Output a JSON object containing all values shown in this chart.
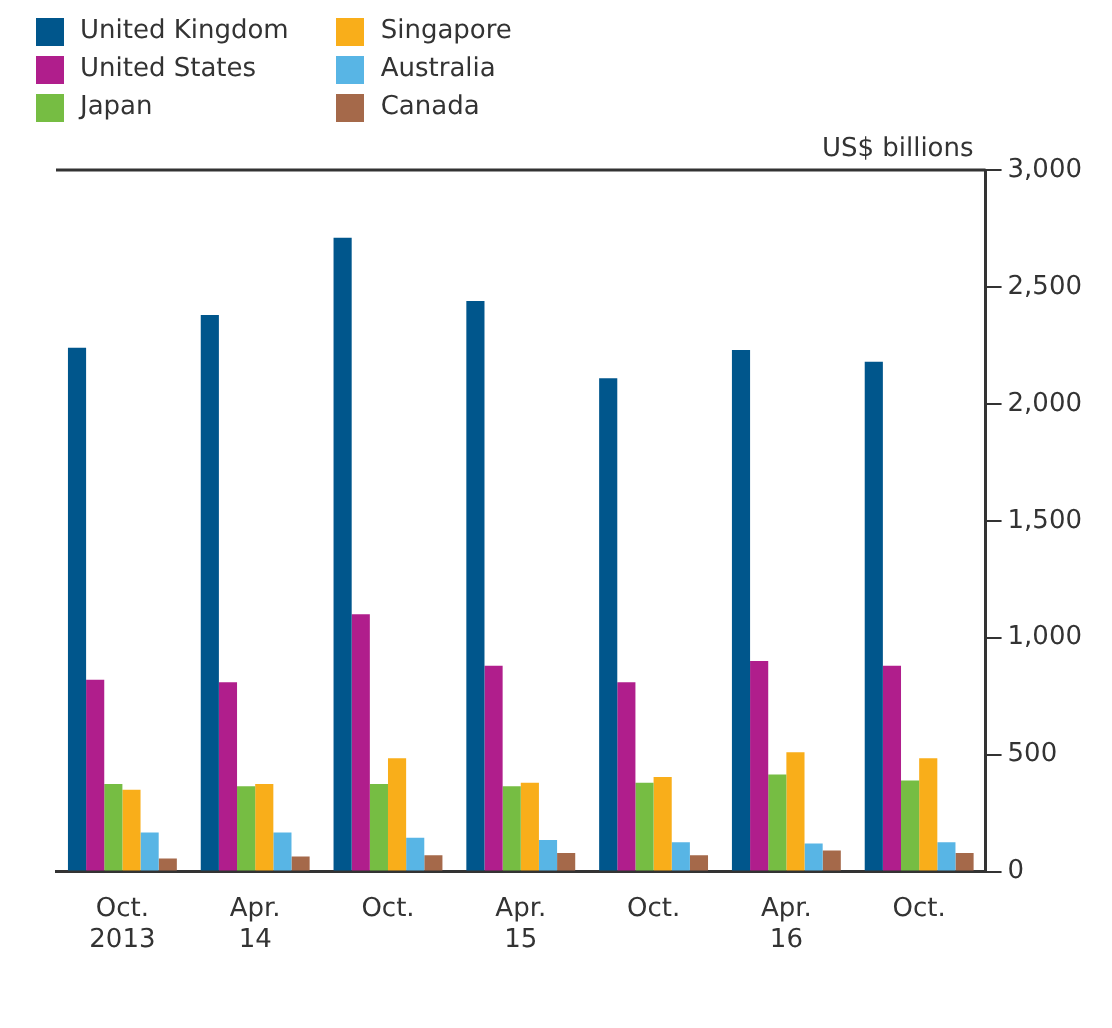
{
  "chart_data": {
    "type": "bar",
    "ylabel": "US$ billions",
    "categories": [
      "Oct.\n2013",
      "Apr.\n14",
      "Oct.",
      "Apr.\n15",
      "Oct.",
      "Apr.\n16",
      "Oct."
    ],
    "series": [
      {
        "name": "United Kingdom",
        "color": "#00568c",
        "values": [
          2240,
          2380,
          2710,
          2440,
          2110,
          2230,
          2180
        ]
      },
      {
        "name": "United States",
        "color": "#b01e8c",
        "values": [
          820,
          810,
          1100,
          880,
          810,
          900,
          880
        ]
      },
      {
        "name": "Japan",
        "color": "#76bd43",
        "values": [
          375,
          365,
          375,
          365,
          380,
          415,
          390
        ]
      },
      {
        "name": "Singapore",
        "color": "#f9ae1a",
        "values": [
          350,
          375,
          485,
          380,
          405,
          510,
          485
        ]
      },
      {
        "name": "Australia",
        "color": "#58b5e5",
        "values": [
          167,
          167,
          145,
          135,
          125,
          120,
          125
        ]
      },
      {
        "name": "Canada",
        "color": "#a5694a",
        "values": [
          56,
          65,
          70,
          80,
          70,
          90,
          80
        ]
      }
    ],
    "ylim": [
      0,
      3000
    ],
    "yticks": [
      0,
      500,
      {
        "value": 1000,
        "label": "1,000"
      },
      {
        "value": 1500,
        "label": "1,500"
      },
      {
        "value": 2000,
        "label": "2,000"
      },
      {
        "value": 2500,
        "label": "2,500"
      },
      {
        "value": 3000,
        "label": "3,000"
      }
    ],
    "grid": false,
    "legend": "top left"
  }
}
